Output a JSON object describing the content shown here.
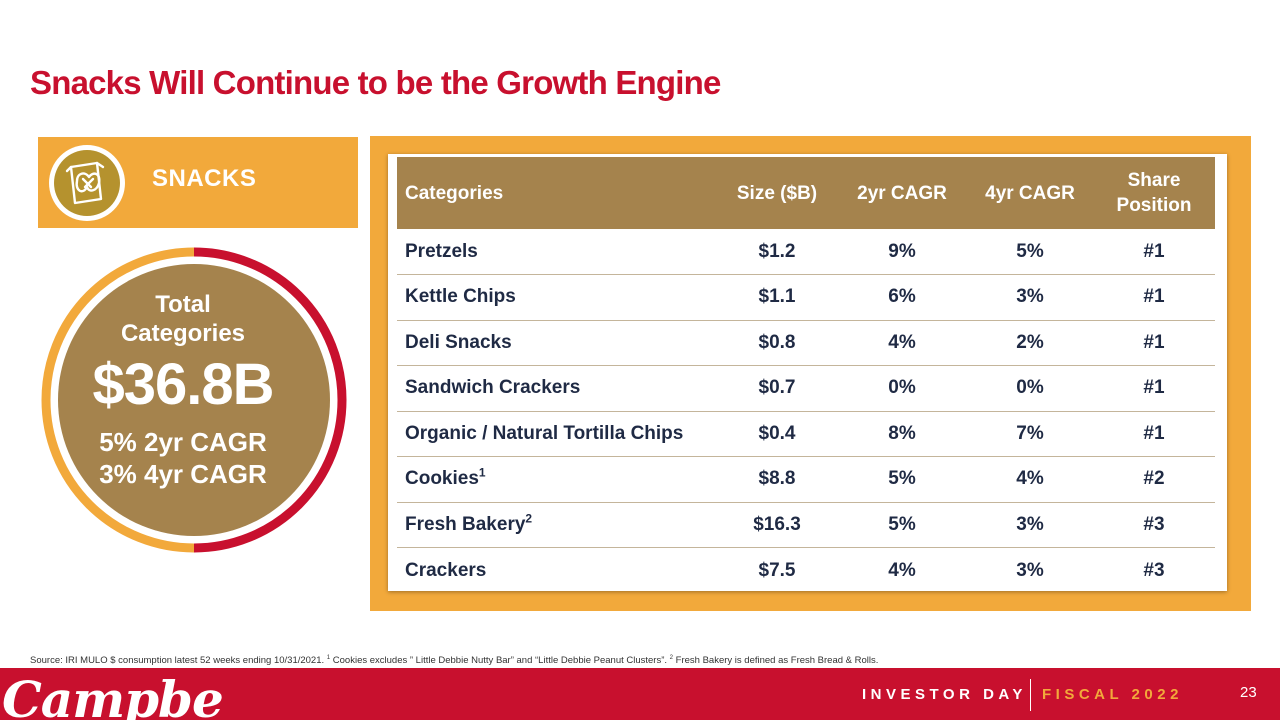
{
  "title": "Snacks Will Continue to be the Growth Engine",
  "colors": {
    "brand_red": "#c8102e",
    "accent_gold": "#f2a93b",
    "tan": "#a5834d",
    "navy": "#1f2a44"
  },
  "snacks_panel": {
    "label": "SNACKS",
    "icon": "snack-bag-pretzel-icon"
  },
  "total": {
    "label_line1": "Total",
    "label_line2": "Categories",
    "value": "$36.8B",
    "cagr_2yr": "5% 2yr CAGR",
    "cagr_4yr": "3% 4yr CAGR",
    "ring_split_fraction": 0.5
  },
  "table": {
    "headers": {
      "categories": "Categories",
      "size": "Size ($B)",
      "cagr2": "2yr CAGR",
      "cagr4": "4yr CAGR",
      "share_line1": "Share",
      "share_line2": "Position"
    },
    "rows": [
      {
        "category": "Pretzels",
        "sup": "",
        "size": "$1.2",
        "cagr2": "9%",
        "cagr4": "5%",
        "share": "#1"
      },
      {
        "category": "Kettle Chips",
        "sup": "",
        "size": "$1.1",
        "cagr2": "6%",
        "cagr4": "3%",
        "share": "#1"
      },
      {
        "category": "Deli Snacks",
        "sup": "",
        "size": "$0.8",
        "cagr2": "4%",
        "cagr4": "2%",
        "share": "#1"
      },
      {
        "category": "Sandwich Crackers",
        "sup": "",
        "size": "$0.7",
        "cagr2": "0%",
        "cagr4": "0%",
        "share": "#1"
      },
      {
        "category": "Organic / Natural Tortilla Chips",
        "sup": "",
        "size": "$0.4",
        "cagr2": "8%",
        "cagr4": "7%",
        "share": "#1"
      },
      {
        "category": "Cookies",
        "sup": "1",
        "size": "$8.8",
        "cagr2": "5%",
        "cagr4": "4%",
        "share": "#2"
      },
      {
        "category": "Fresh Bakery",
        "sup": "2",
        "size": "$16.3",
        "cagr2": "5%",
        "cagr4": "3%",
        "share": "#3"
      },
      {
        "category": "Crackers",
        "sup": "",
        "size": "$7.5",
        "cagr2": "4%",
        "cagr4": "3%",
        "share": "#3"
      }
    ]
  },
  "source": {
    "part1": "Source: IRI MULO $ consumption latest 52 weeks ending 10/31/2021.  ",
    "sup1": "1",
    "part2": " Cookies excludes ” Little Debbie Nutty Bar” and “Little Debbie Peanut Clusters”. ",
    "sup2": "2",
    "part3": " Fresh Bakery is defined as Fresh Bread & Rolls."
  },
  "footer": {
    "logo_text": "Campbell's",
    "investor_day": "INVESTOR DAY",
    "fiscal": "FISCAL 2022",
    "page_number": "23"
  }
}
